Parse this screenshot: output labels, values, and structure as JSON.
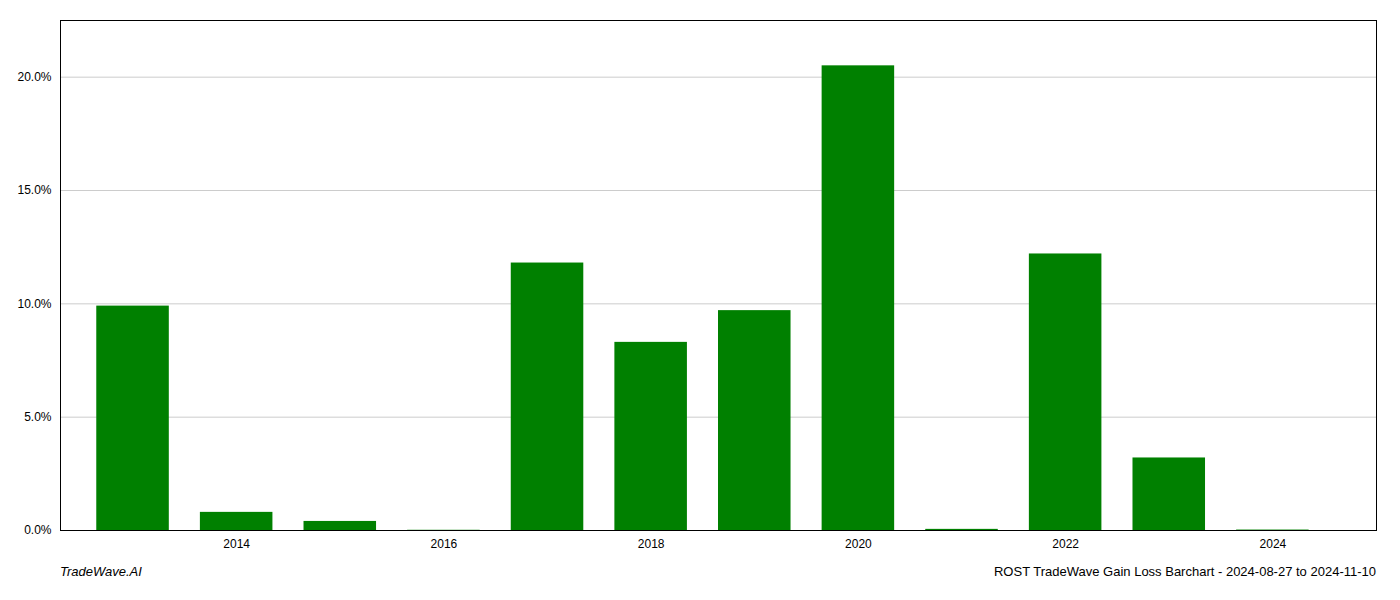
{
  "chart_data": {
    "type": "bar",
    "title": "ROST TradeWave Gain Loss Barchart - 2024-08-27 to 2024-11-10",
    "annotations": [
      "TradeWave.AI"
    ],
    "x": [
      2013,
      2014,
      2015,
      2016,
      2017,
      2018,
      2019,
      2020,
      2021,
      2022,
      2023,
      2024
    ],
    "values": [
      0.099,
      0.008,
      0.004,
      0.0001,
      0.118,
      0.083,
      0.097,
      0.205,
      0.0005,
      0.122,
      0.032,
      0.0002
    ],
    "color": "#008000",
    "xlim": [
      2012.3,
      2025.0
    ],
    "xticks": [
      2014,
      2016,
      2018,
      2020,
      2022,
      2024
    ],
    "ylim": [
      0,
      0.225
    ],
    "yticks": [
      {
        "value": 0.0,
        "label": "0.0%"
      },
      {
        "value": 0.05,
        "label": "5.0%"
      },
      {
        "value": 0.1,
        "label": "10.0%"
      },
      {
        "value": 0.15,
        "label": "15.0%"
      },
      {
        "value": 0.2,
        "label": "20.0%"
      }
    ],
    "grid": true
  }
}
